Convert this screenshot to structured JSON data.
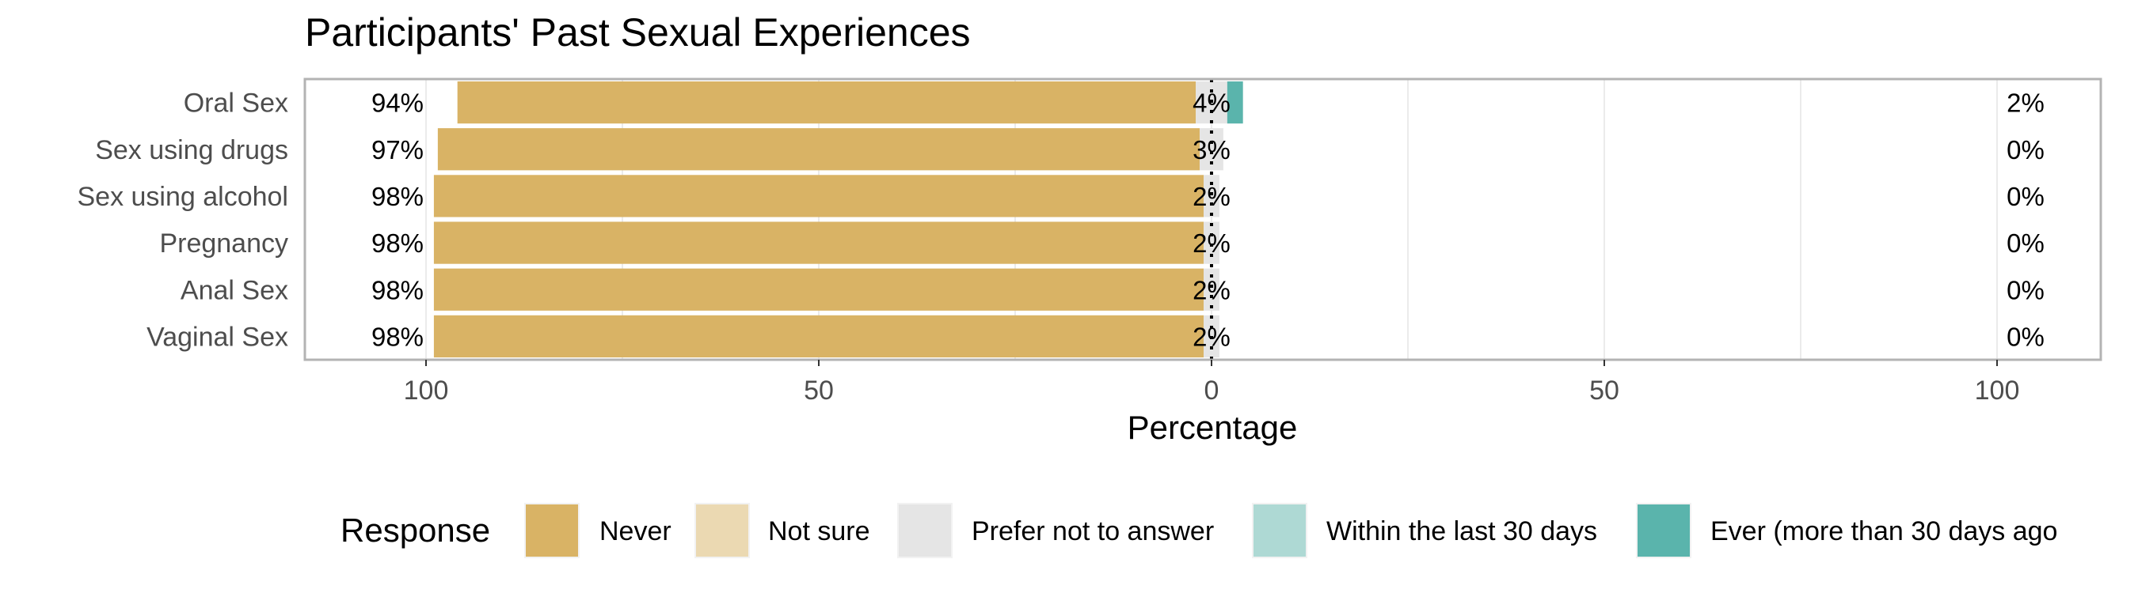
{
  "chart_data": {
    "type": "bar",
    "orientation": "horizontal-diverging",
    "title": "Participants' Past Sexual Experiences",
    "xlabel": "Percentage",
    "ylabel": "",
    "xlim": [
      -100,
      100
    ],
    "x_ticks": [
      -100,
      -50,
      0,
      50,
      100
    ],
    "x_tick_labels": [
      "100",
      "50",
      "0",
      "50",
      "100"
    ],
    "grid": true,
    "legend_position": "bottom",
    "legend_title": "Response",
    "categories": [
      "Oral Sex",
      "Sex using drugs",
      "Sex using alcohol",
      "Pregnancy",
      "Anal Sex",
      "Vaginal Sex"
    ],
    "series": [
      {
        "name": "Never",
        "color": "#d9b365",
        "values": [
          94,
          97,
          98,
          98,
          98,
          98
        ]
      },
      {
        "name": "Not sure",
        "color": "#ebd9b2",
        "values": [
          0,
          0,
          0,
          0,
          0,
          0
        ]
      },
      {
        "name": "Prefer not to answer",
        "color": "#e5e5e5",
        "values": [
          4,
          3,
          2,
          2,
          2,
          2
        ]
      },
      {
        "name": "Within the last 30 days",
        "color": "#aed9d4",
        "values": [
          0,
          0,
          0,
          0,
          0,
          0
        ]
      },
      {
        "name": "Ever (more than 30 days ago",
        "color": "#5ab4ac",
        "values": [
          2,
          0,
          0,
          0,
          0,
          0
        ]
      }
    ],
    "left_labels": [
      "94%",
      "97%",
      "98%",
      "98%",
      "98%",
      "98%"
    ],
    "center_labels": [
      "4%",
      "3%",
      "2%",
      "2%",
      "2%",
      "2%"
    ],
    "right_labels": [
      "2%",
      "0%",
      "0%",
      "0%",
      "0%",
      "0%"
    ]
  }
}
